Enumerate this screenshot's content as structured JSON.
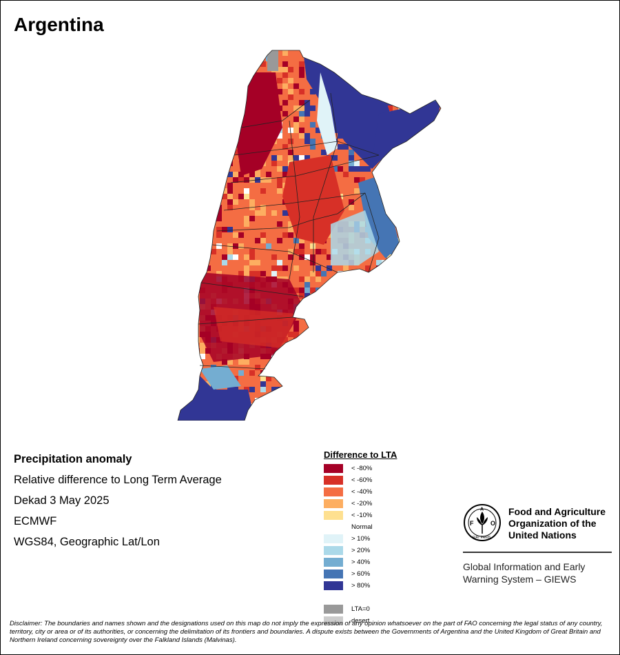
{
  "title": "Argentina",
  "info": {
    "heading": "Precipitation anomaly",
    "line1": "Relative difference to Long Term Average",
    "line2": "Dekad 3 May 2025",
    "line3": "ECMWF",
    "line4": "WGS84, Geographic Lat/Lon"
  },
  "legend": {
    "title": "Difference to LTA",
    "items": [
      {
        "label": "< -80%",
        "color": "#a50026"
      },
      {
        "label": "< -60%",
        "color": "#d73027"
      },
      {
        "label": "< -40%",
        "color": "#f46d43"
      },
      {
        "label": "< -20%",
        "color": "#fdae61"
      },
      {
        "label": "< -10%",
        "color": "#fee090"
      },
      {
        "label": "Normal",
        "color": "#ffffff"
      },
      {
        "label": "> 10%",
        "color": "#e0f3f8"
      },
      {
        "label": "> 20%",
        "color": "#abd9e9"
      },
      {
        "label": "> 40%",
        "color": "#74add1"
      },
      {
        "label": "> 60%",
        "color": "#4575b4"
      },
      {
        "label": "> 80%",
        "color": "#313695"
      },
      {
        "label": "",
        "color": ""
      },
      {
        "label": "LTA=0",
        "color": "#999999"
      },
      {
        "label": "desert",
        "color": "#cccccc"
      }
    ]
  },
  "fao": {
    "name_line1": "Food and Agriculture",
    "name_line2": "Organization of the",
    "name_line3": "United Nations",
    "giews_line1": "Global Information and Early",
    "giews_line2": "Warning System – GIEWS",
    "logo_text": "FAO",
    "logo_motto": "FIAT PANIS"
  },
  "disclaimer": "Disclaimer: The boundaries and names shown and the designations used on this map do not imply the expression of any opinion whatsoever on the part of FAO concerning the legal status of any country, territory, city or area or of its authorities, or concerning the delimitation of its frontiers and boundaries. A dispute exists between the Governments of Argentina and the United Kingdom of Great Britain and Northern Ireland concerning sovereignty over the Falkland Islands (Malvinas)."
}
